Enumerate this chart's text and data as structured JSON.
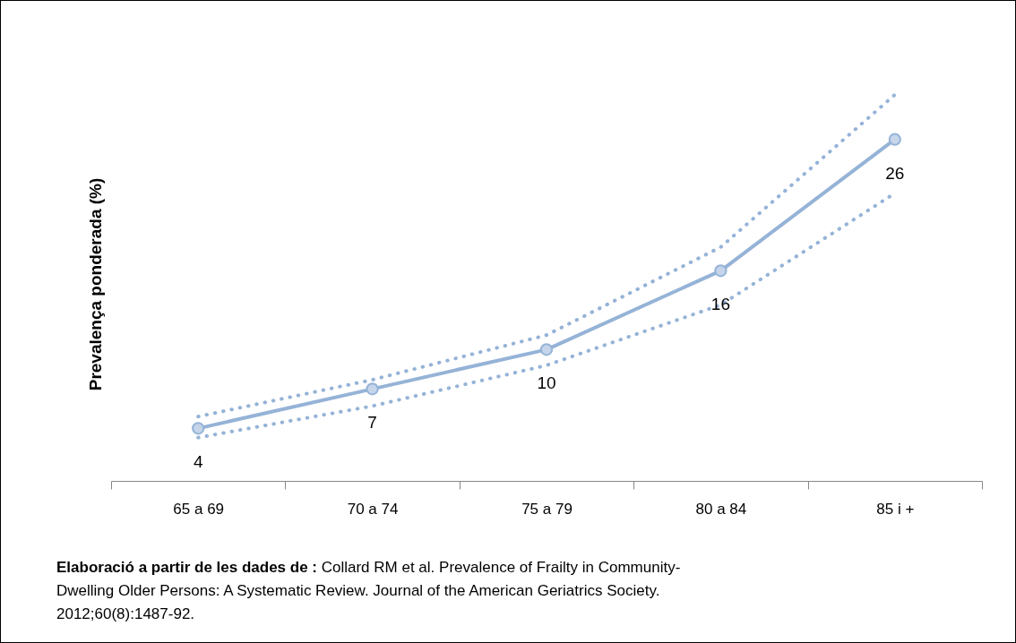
{
  "chart_data": {
    "type": "line",
    "ylabel": "Prevalença ponderada (%)",
    "categories": [
      "65 a 69",
      "70 a 74",
      "75 a 79",
      "80 a 84",
      "85 i +"
    ],
    "series": [
      {
        "color": "#95b3d7",
        "values": [
          4,
          7,
          10,
          16,
          26
        ],
        "value_labels": [
          "4",
          "7",
          "10",
          "16",
          "26"
        ],
        "line_style": "solid",
        "marker": "circle"
      },
      {
        "color": "#95b3d7",
        "values": [
          4.9,
          7.7,
          11.1,
          17.8,
          29.4
        ],
        "line_style": "dotted",
        "marker": "none"
      },
      {
        "color": "#95b3d7",
        "values": [
          3.3,
          5.7,
          8.8,
          13.4,
          21.9
        ],
        "line_style": "dotted",
        "marker": "none"
      }
    ],
    "tick_labels": "x",
    "annotations": [
      "Elaboració a partir de les dades de : Collard RM et al. Prevalence of Frailty in Community-Dwelling Older Persons: A Systematic Review. Journal of the American Geriatrics Society. 2012;60(8):1487-92."
    ]
  }
}
